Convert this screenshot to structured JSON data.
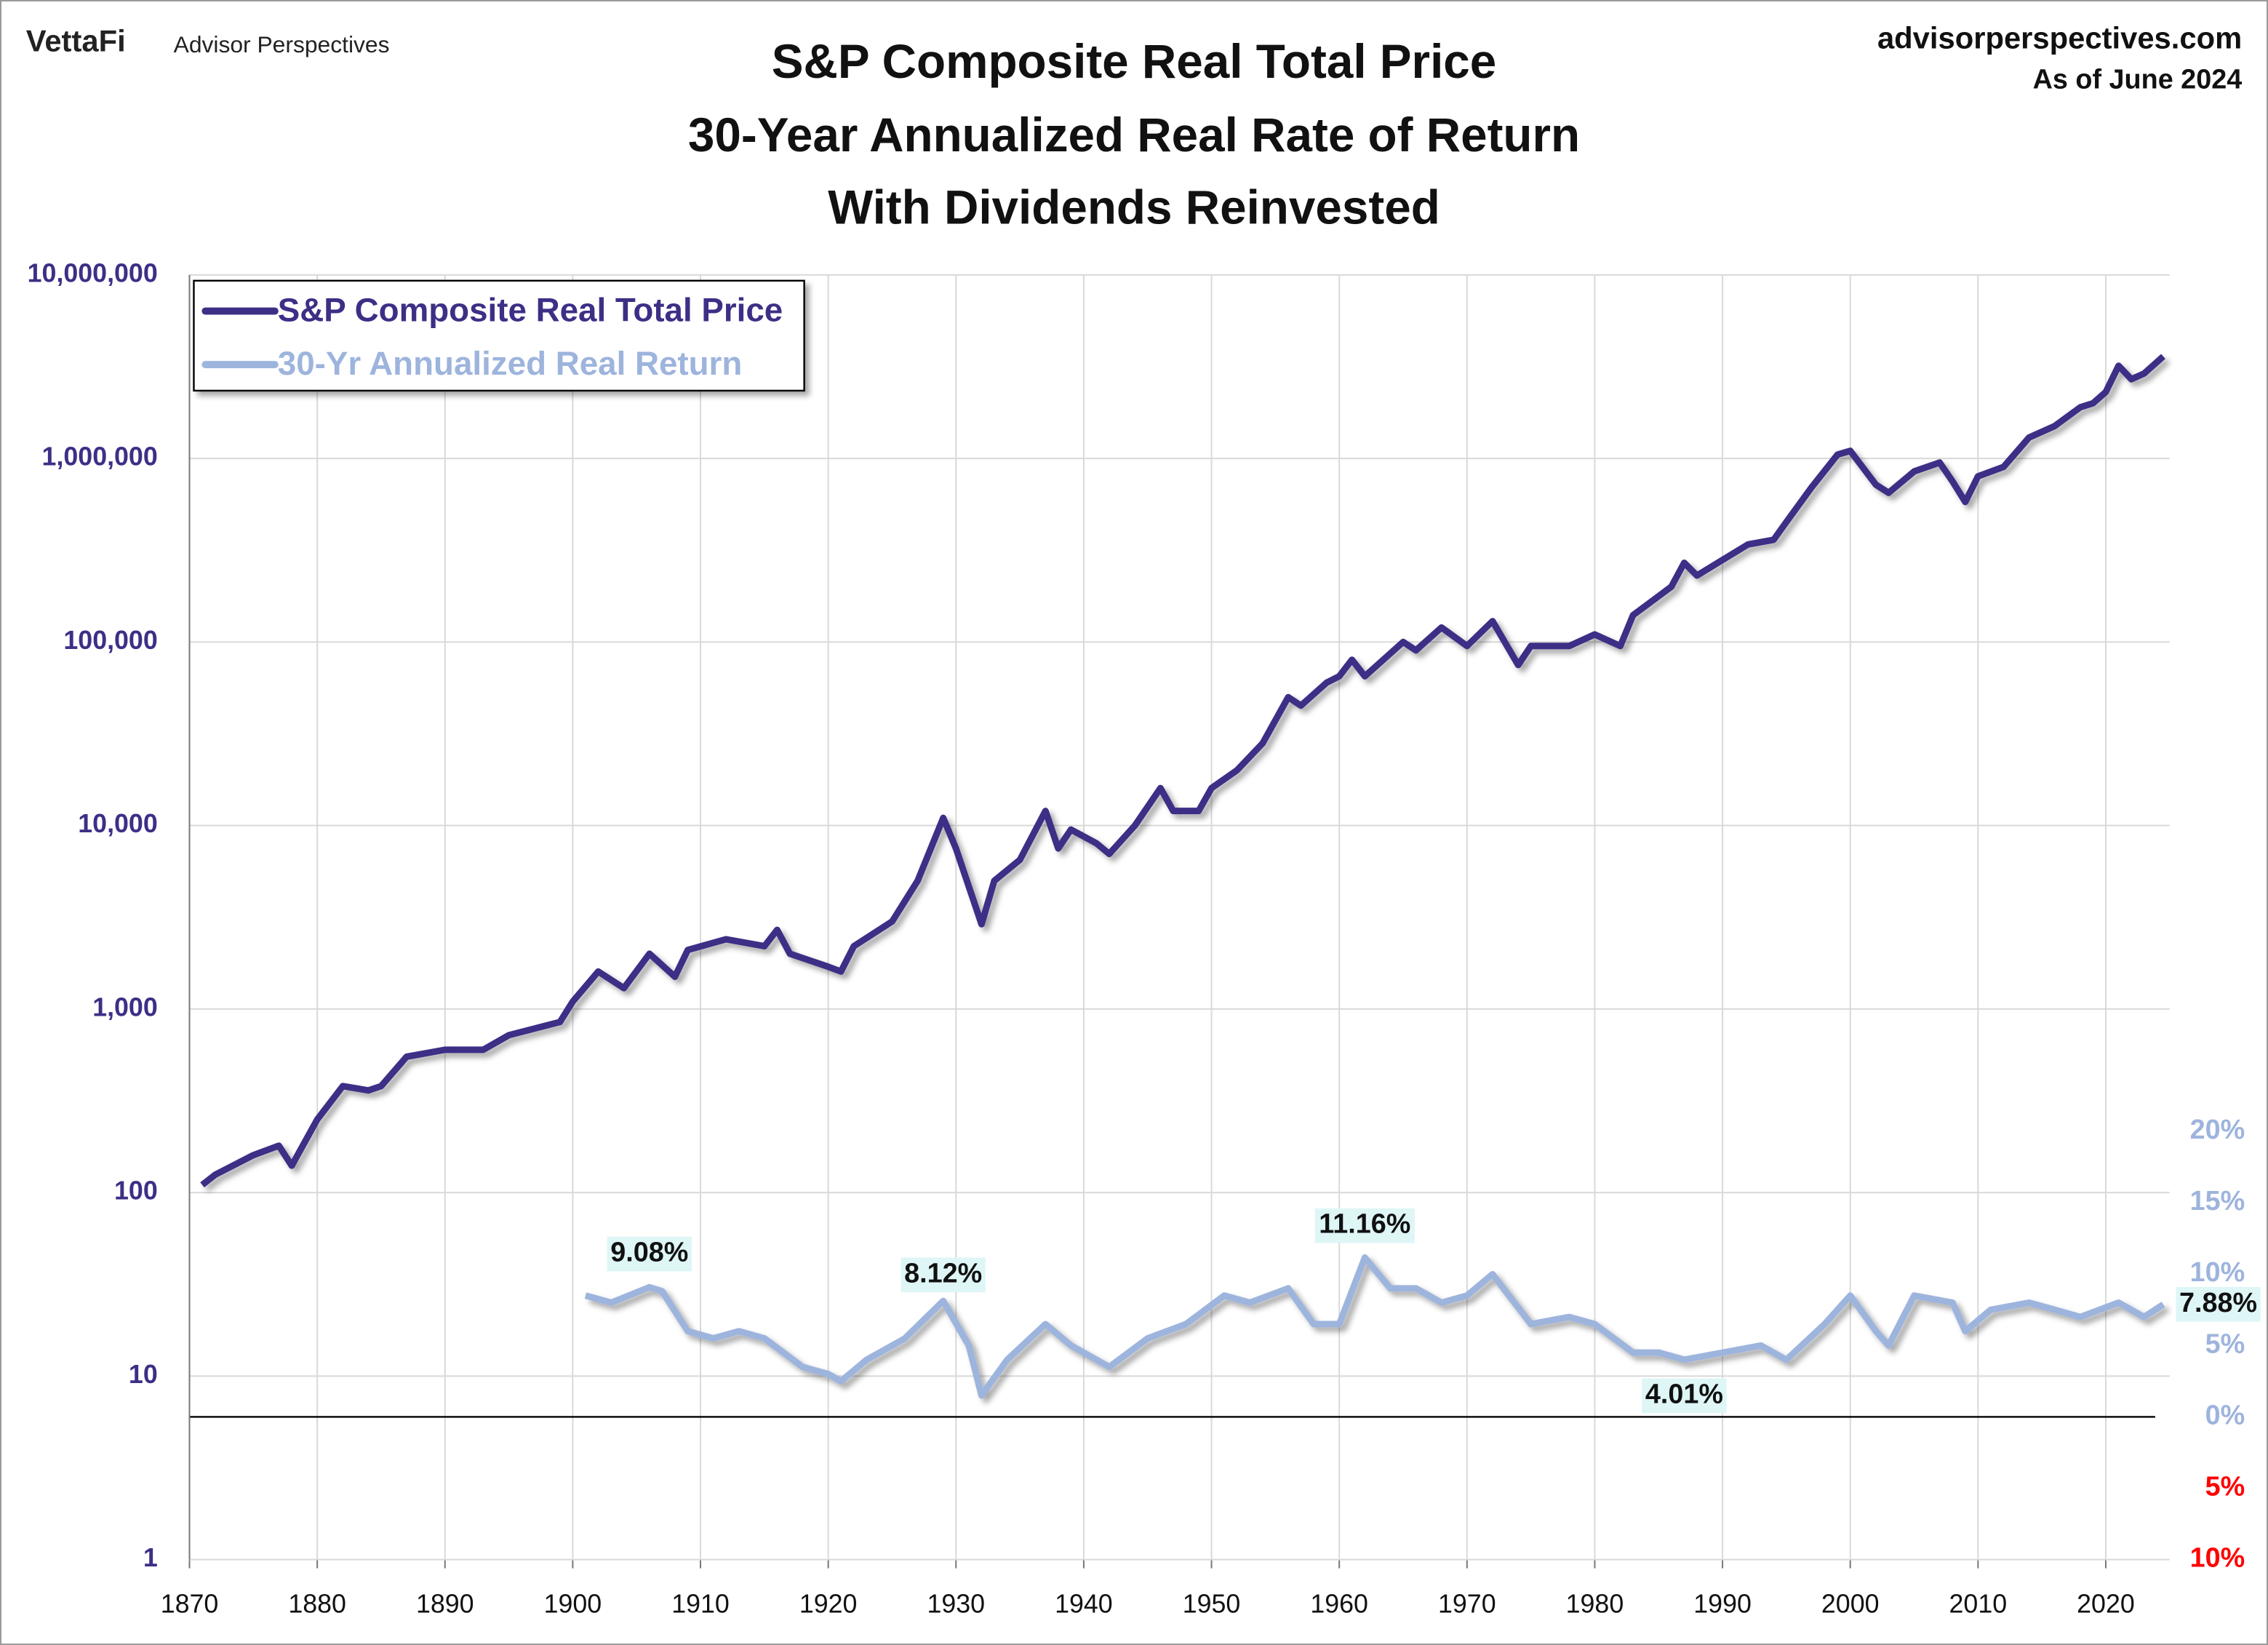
{
  "chart_data": {
    "type": "line",
    "brand": "VettaFi",
    "publisher": "Advisor Perspectives",
    "website": "advisorperspectives.com",
    "as_of": "As of June 2024",
    "title": "S&P Composite Real Total Price",
    "subtitle": [
      "30-Year Annualized Real Rate of Return",
      "With Dividends Reinvested"
    ],
    "xlim": [
      1870,
      2025
    ],
    "xticks": [
      1870,
      1880,
      1890,
      1900,
      1910,
      1920,
      1930,
      1940,
      1950,
      1960,
      1970,
      1980,
      1990,
      2000,
      2010,
      2020
    ],
    "ylim": [
      1,
      10000000
    ],
    "log_y": true,
    "yticks": [
      1,
      10,
      100,
      {
        "value": 1000,
        "label": "1,000"
      },
      {
        "value": 10000,
        "label": "10,000"
      },
      {
        "value": 100000,
        "label": "100,000"
      },
      {
        "value": 1000000,
        "label": "1,000,000"
      },
      {
        "value": 10000000,
        "label": "10,000,000"
      }
    ],
    "y2lim": [
      -10,
      80
    ],
    "y2ticks": [
      {
        "value": -10,
        "label": "10%"
      },
      {
        "value": -5,
        "label": "5%"
      },
      {
        "value": 0,
        "label": "0%"
      },
      {
        "value": 5,
        "label": "5%"
      },
      {
        "value": 10,
        "label": "10%"
      },
      {
        "value": 15,
        "label": "15%"
      },
      {
        "value": 20,
        "label": "20%"
      }
    ],
    "y2_negative_color": "#ff0000",
    "grid": true,
    "legend": "upper left",
    "series": [
      {
        "name": "S&P Composite Real Total Price",
        "color": "#3d2f86",
        "x": [
          1871,
          1872,
          1875,
          1877,
          1878,
          1880,
          1882,
          1884,
          1885,
          1887,
          1890,
          1893,
          1895,
          1899,
          1900,
          1902,
          1904,
          1906,
          1908,
          1909,
          1912,
          1915,
          1916,
          1917,
          1920,
          1921,
          1922,
          1925,
          1927,
          1929,
          1930,
          1932,
          1933,
          1935,
          1937,
          1938,
          1939,
          1941,
          1942,
          1944,
          1946,
          1947,
          1949,
          1950,
          1952,
          1954,
          1956,
          1957,
          1959,
          1960,
          1961,
          1962,
          1965,
          1966,
          1968,
          1970,
          1972,
          1974,
          1975,
          1978,
          1980,
          1982,
          1983,
          1986,
          1987,
          1988,
          1990,
          1992,
          1994,
          1995,
          1997,
          1999,
          2000,
          2002,
          2003,
          2005,
          2007,
          2008,
          2009,
          2010,
          2012,
          2014,
          2016,
          2018,
          2019,
          2020,
          2021,
          2022,
          2023,
          2024.5
        ],
        "values": [
          110,
          125,
          160,
          180,
          140,
          250,
          380,
          360,
          380,
          550,
          600,
          600,
          720,
          850,
          1100,
          1600,
          1300,
          2000,
          1500,
          2100,
          2400,
          2200,
          2700,
          2000,
          1700,
          1600,
          2200,
          3000,
          5000,
          11000,
          7500,
          2900,
          5000,
          6500,
          12000,
          7500,
          9500,
          8000,
          7000,
          10000,
          16000,
          12000,
          12000,
          16000,
          20000,
          28000,
          50000,
          45000,
          60000,
          65000,
          80000,
          65000,
          100000,
          90000,
          120000,
          95000,
          130000,
          75000,
          95000,
          95000,
          110000,
          95000,
          140000,
          200000,
          270000,
          230000,
          280000,
          340000,
          360000,
          450000,
          700000,
          1050000,
          1100000,
          720000,
          650000,
          850000,
          950000,
          750000,
          580000,
          800000,
          900000,
          1300000,
          1500000,
          1900000,
          2000000,
          2300000,
          3200000,
          2700000,
          2900000,
          3600000
        ]
      },
      {
        "name": "30-Yr Annualized Real Return",
        "color": "#9db4dd",
        "axis": "y2",
        "x": [
          1901,
          1903,
          1906,
          1907,
          1909,
          1911,
          1913,
          1915,
          1918,
          1920,
          1921,
          1923,
          1926,
          1929,
          1931,
          1932,
          1934,
          1937,
          1939,
          1942,
          1945,
          1948,
          1951,
          1953,
          1956,
          1958,
          1960,
          1962,
          1964,
          1966,
          1968,
          1970,
          1972,
          1975,
          1978,
          1980,
          1983,
          1985,
          1987,
          1990,
          1993,
          1995,
          1998,
          2000,
          2002,
          2003,
          2005,
          2008,
          2009,
          2011,
          2014,
          2016,
          2018,
          2021,
          2023,
          2024.5
        ],
        "values": [
          8.5,
          8,
          9.08,
          8.8,
          6,
          5.5,
          6,
          5.5,
          3.5,
          3,
          2.5,
          4,
          5.5,
          8.12,
          5,
          1.5,
          4,
          6.5,
          5,
          3.5,
          5.5,
          6.5,
          8.5,
          8,
          9,
          6.5,
          6.5,
          11.16,
          9,
          9,
          8,
          8.5,
          10,
          6.5,
          7,
          6.5,
          4.5,
          4.5,
          4.01,
          4.5,
          5,
          4,
          6.5,
          8.5,
          6,
          5,
          8.5,
          8,
          6,
          7.5,
          8,
          7.5,
          7,
          8,
          7,
          7.88
        ]
      }
    ],
    "annotations": [
      {
        "x": 1906,
        "y": 9.08,
        "label": "9.08%"
      },
      {
        "x": 1929,
        "y": 8.12,
        "label": "8.12%"
      },
      {
        "x": 1962,
        "y": 11.16,
        "label": "11.16%"
      },
      {
        "x": 1987,
        "y": 4.01,
        "label": "4.01%"
      },
      {
        "x": 2024.5,
        "y": 7.88,
        "label": "7.88%"
      }
    ]
  }
}
